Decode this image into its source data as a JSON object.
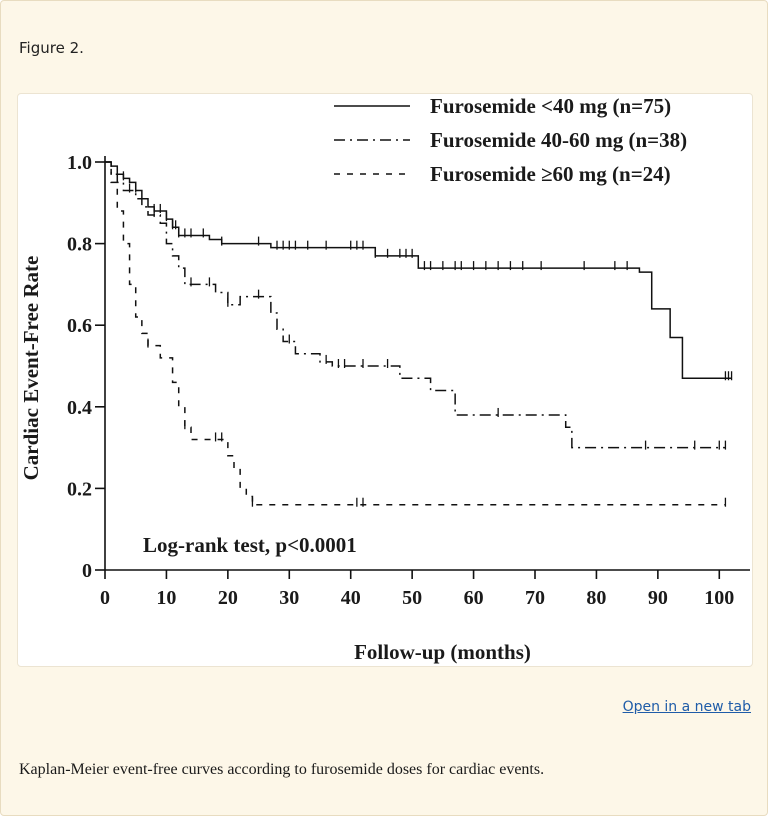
{
  "figure": {
    "label": "Figure 2.",
    "open_link": "Open in a new tab",
    "caption": "Kaplan-Meier event-free curves according to furosemide doses for cardiac events."
  },
  "chart_data": {
    "type": "line",
    "step": true,
    "xlabel": "Follow-up (months)",
    "ylabel": "Cardiac Event-Free Rate",
    "xlim": [
      0,
      105
    ],
    "ylim": [
      0,
      1.0
    ],
    "xticks": [
      0,
      10,
      20,
      30,
      40,
      50,
      60,
      70,
      80,
      90,
      100
    ],
    "yticks": [
      0,
      0.2,
      0.4,
      0.6,
      0.8,
      1.0
    ],
    "ytick_labels": [
      "0",
      "0.2",
      "0.4",
      "0.6",
      "0.8",
      "1.0"
    ],
    "grid": false,
    "legend_position": "top-right",
    "annotation": "Log-rank test, p<0.0001",
    "series": [
      {
        "name": "Furosemide <40 mg (n=75)",
        "dash": "solid",
        "steps": [
          [
            0,
            1.0
          ],
          [
            1,
            0.99
          ],
          [
            2,
            0.97
          ],
          [
            3,
            0.96
          ],
          [
            4,
            0.95
          ],
          [
            5,
            0.93
          ],
          [
            6,
            0.91
          ],
          [
            7,
            0.89
          ],
          [
            8,
            0.88
          ],
          [
            10,
            0.86
          ],
          [
            11,
            0.84
          ],
          [
            12,
            0.82
          ],
          [
            17,
            0.81
          ],
          [
            19,
            0.8
          ],
          [
            27,
            0.79
          ],
          [
            44,
            0.77
          ],
          [
            51,
            0.74
          ],
          [
            87,
            0.73
          ],
          [
            89,
            0.64
          ],
          [
            92,
            0.57
          ],
          [
            94,
            0.47
          ],
          [
            102,
            0.47
          ]
        ],
        "censors": [
          3,
          5,
          8,
          9,
          10,
          11,
          11.5,
          12,
          13,
          14,
          16,
          19,
          25,
          28,
          29,
          30,
          31,
          33,
          36,
          40,
          41,
          42,
          44,
          46,
          48,
          49,
          50,
          52,
          53,
          55,
          57,
          58,
          60,
          62,
          64,
          66,
          68,
          71,
          78,
          83,
          85,
          101,
          101.5,
          102
        ]
      },
      {
        "name": "Furosemide 40-60 mg (n=38)",
        "dash": "dash-dot",
        "steps": [
          [
            0,
            1.0
          ],
          [
            1,
            0.97
          ],
          [
            2,
            0.95
          ],
          [
            3,
            0.93
          ],
          [
            5,
            0.91
          ],
          [
            6,
            0.89
          ],
          [
            7,
            0.87
          ],
          [
            9,
            0.85
          ],
          [
            10,
            0.8
          ],
          [
            11,
            0.77
          ],
          [
            12,
            0.74
          ],
          [
            13,
            0.7
          ],
          [
            18,
            0.68
          ],
          [
            20,
            0.65
          ],
          [
            22,
            0.67
          ],
          [
            27,
            0.63
          ],
          [
            28,
            0.59
          ],
          [
            29,
            0.56
          ],
          [
            31,
            0.53
          ],
          [
            35,
            0.51
          ],
          [
            37,
            0.5
          ],
          [
            48,
            0.47
          ],
          [
            53,
            0.44
          ],
          [
            57,
            0.38
          ],
          [
            75,
            0.35
          ],
          [
            76,
            0.3
          ],
          [
            101,
            0.3
          ]
        ],
        "censors": [
          4,
          8,
          14,
          17,
          20,
          25,
          30,
          36,
          38,
          39,
          42,
          46,
          64,
          88,
          96,
          100,
          101
        ]
      },
      {
        "name": "Furosemide ≥60 mg (n=24)",
        "dash": "dashed",
        "steps": [
          [
            0,
            1.0
          ],
          [
            1,
            0.95
          ],
          [
            2,
            0.88
          ],
          [
            3,
            0.8
          ],
          [
            4,
            0.7
          ],
          [
            5,
            0.62
          ],
          [
            6,
            0.58
          ],
          [
            7,
            0.55
          ],
          [
            9,
            0.52
          ],
          [
            11,
            0.46
          ],
          [
            12,
            0.4
          ],
          [
            13,
            0.35
          ],
          [
            14,
            0.32
          ],
          [
            20,
            0.28
          ],
          [
            21,
            0.25
          ],
          [
            22,
            0.2
          ],
          [
            23,
            0.18
          ],
          [
            24,
            0.16
          ],
          [
            101,
            0.16
          ]
        ],
        "censors": [
          7,
          13,
          18,
          19,
          24,
          41,
          42,
          101
        ]
      }
    ]
  }
}
